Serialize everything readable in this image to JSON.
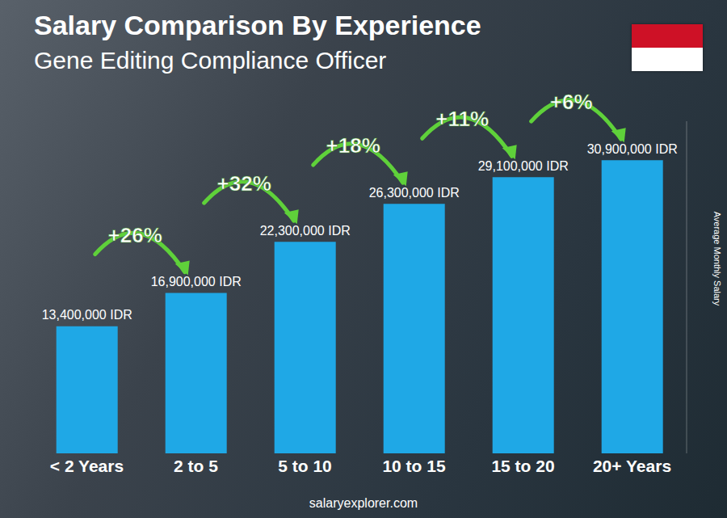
{
  "chart_data": {
    "type": "bar",
    "title": "Salary Comparison By Experience",
    "subtitle": "Gene Editing Compliance Officer",
    "y_label": "Average Monthly Salary",
    "source": "salaryexplorer.com",
    "categories": [
      "< 2 Years",
      "2 to 5",
      "5 to 10",
      "10 to 15",
      "15 to 20",
      "20+ Years"
    ],
    "values": [
      13400000,
      16900000,
      22300000,
      26300000,
      29100000,
      30900000
    ],
    "value_labels": [
      "13,400,000 IDR",
      "16,900,000 IDR",
      "22,300,000 IDR",
      "26,300,000 IDR",
      "29,100,000 IDR",
      "30,900,000 IDR"
    ],
    "data_labels": true,
    "color": "#1fa8e6",
    "ylim": [
      0,
      35000000
    ],
    "tick_labels": "x",
    "grid": false,
    "annotations": [
      {
        "text": "+26%",
        "from": "< 2 Years",
        "to": "2 to 5"
      },
      {
        "text": "+32%",
        "from": "2 to 5",
        "to": "5 to 10"
      },
      {
        "text": "+18%",
        "from": "5 to 10",
        "to": "10 to 15"
      },
      {
        "text": "+11%",
        "from": "10 to 15",
        "to": "15 to 20"
      },
      {
        "text": "+6%",
        "from": "15 to 20",
        "to": "20+ Years"
      }
    ]
  }
}
